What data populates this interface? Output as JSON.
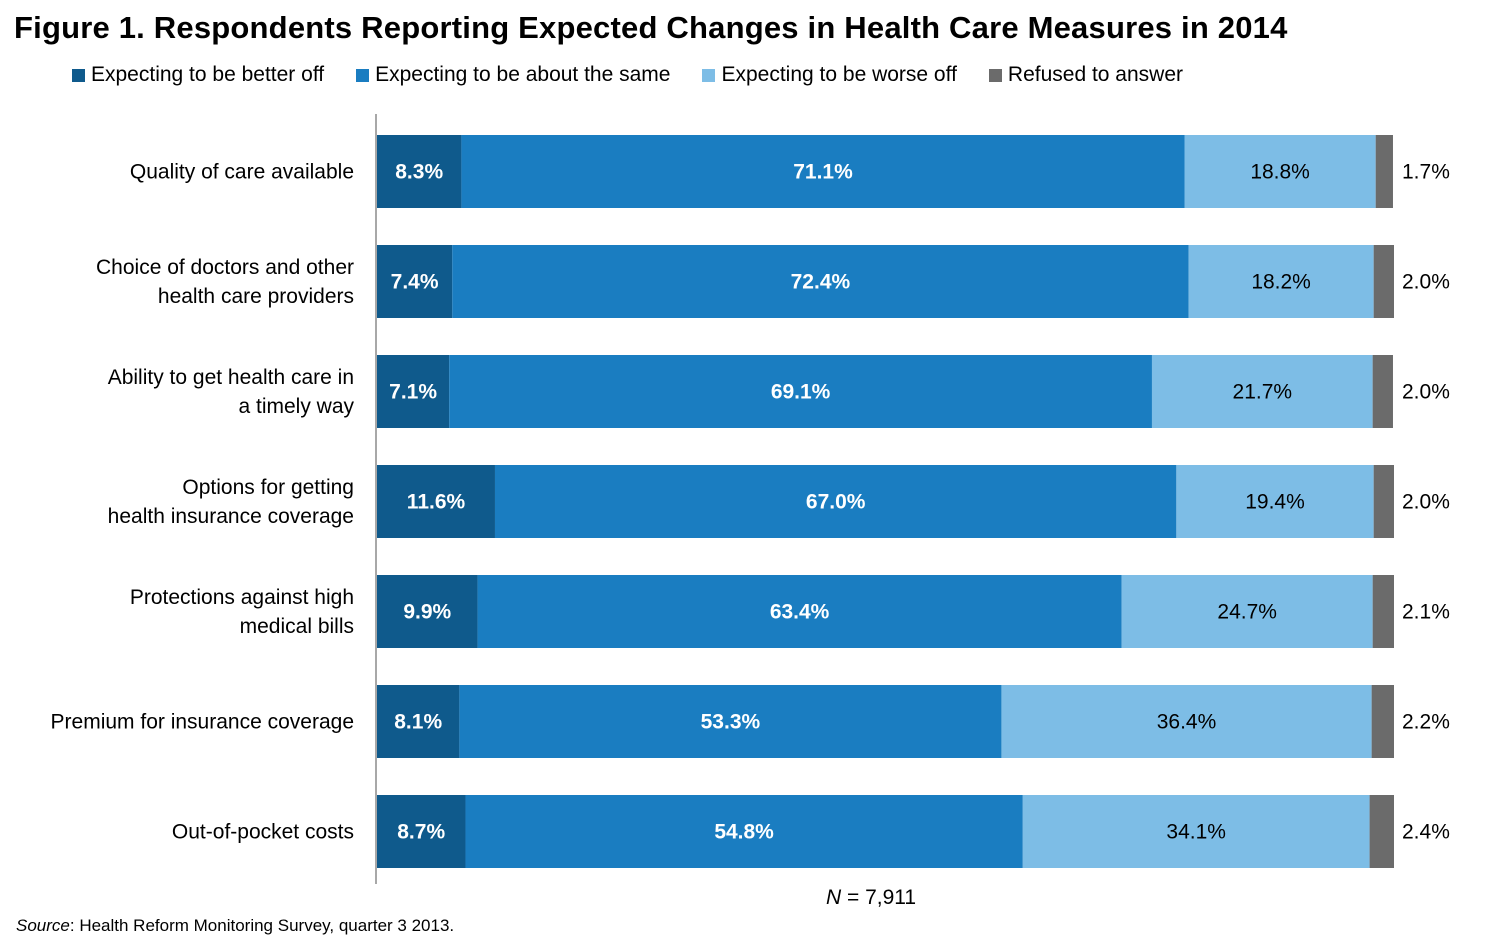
{
  "chart_data": {
    "type": "bar",
    "orientation": "horizontal",
    "stacked": true,
    "title": "Figure 1. Respondents Reporting Expected Changes in Health Care Measures in 2014",
    "categories": [
      "Quality of care available",
      "Choice of doctors and other health care providers",
      "Ability to get health care in a timely way",
      "Options for getting health insurance coverage",
      "Protections against high medical bills",
      "Premium for insurance coverage",
      "Out-of-pocket costs"
    ],
    "category_lines": [
      [
        "Quality of care available"
      ],
      [
        "Choice of doctors and other",
        "health care providers"
      ],
      [
        "Ability to get health care in",
        "a timely way"
      ],
      [
        "Options for getting",
        "health insurance coverage"
      ],
      [
        "Protections against high",
        "medical bills"
      ],
      [
        "Premium for insurance coverage"
      ],
      [
        "Out-of-pocket costs"
      ]
    ],
    "series": [
      {
        "name": "Expecting to be better off",
        "color": "#0F5A8C",
        "values": [
          8.3,
          7.4,
          7.1,
          11.6,
          9.9,
          8.1,
          8.7
        ],
        "labels": [
          "8.3%",
          "7.4%",
          "7.1%",
          "11.6%",
          "9.9%",
          "8.1%",
          "8.7%"
        ]
      },
      {
        "name": "Expecting to be about the same",
        "color": "#1A7DC1",
        "values": [
          71.1,
          72.4,
          69.1,
          67.0,
          63.4,
          53.3,
          54.8
        ],
        "labels": [
          "71.1%",
          "72.4%",
          "69.1%",
          "67.0%",
          "63.4%",
          "53.3%",
          "54.8%"
        ]
      },
      {
        "name": "Expecting to be worse off",
        "color": "#7DBDE6",
        "values": [
          18.8,
          18.2,
          21.7,
          19.4,
          24.7,
          36.4,
          34.1
        ],
        "labels": [
          "18.8%",
          "18.2%",
          "21.7%",
          "19.4%",
          "24.7%",
          "36.4%",
          "34.1%"
        ]
      },
      {
        "name": "Refused to answer",
        "color": "#6B6B6B",
        "values": [
          1.7,
          2.0,
          2.0,
          2.0,
          2.1,
          2.2,
          2.4
        ],
        "labels": [
          "1.7%",
          "2.0%",
          "2.0%",
          "2.0%",
          "2.1%",
          "2.2%",
          "2.4%"
        ]
      }
    ],
    "xlim": [
      0,
      100
    ],
    "legend_position": "top",
    "grid": false,
    "sample_note_symbol": "N",
    "sample_note_text": " = 7,911",
    "source_label": "Source",
    "source_text": ": Health Reform Monitoring Survey, quarter 3 2013."
  }
}
